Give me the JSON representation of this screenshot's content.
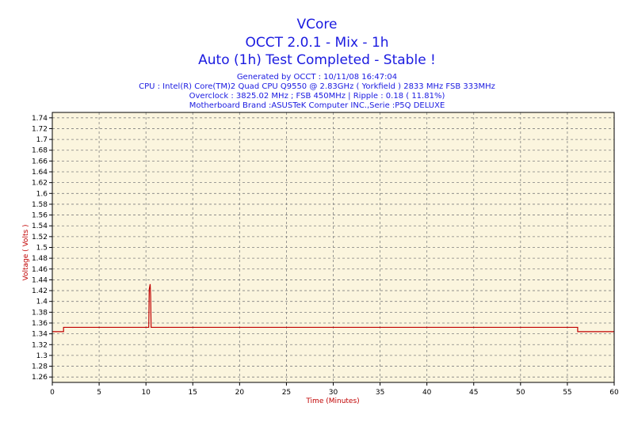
{
  "header": {
    "title": "VCore",
    "subtitle": "OCCT 2.0.1 - Mix - 1h",
    "status": "Auto (1h) Test Completed - Stable !",
    "info": [
      "Generated by OCCT : 10/11/08 16:47:04",
      "CPU : Intel(R) Core(TM)2 Quad CPU Q9550 @ 2.83GHz ( Yorkfield ) 2833 MHz FSB 333MHz",
      "Overclock : 3825.02 MHz ; FSB 450MHz | Ripple : 0.18 ( 11.81%)",
      "Motherboard Brand :ASUSTeK Computer INC.,Serie :P5Q DELUXE"
    ]
  },
  "colors": {
    "title": "#1a1ae0",
    "plot_background": "#fbf5de",
    "grid": "#808080",
    "series": "#c00000",
    "axis_label": "#c00000"
  },
  "chart_data": {
    "type": "line",
    "title": "VCore",
    "xlabel": "Time (Minutes)",
    "ylabel": "Voltage ( Volts )",
    "xlim": [
      0,
      60
    ],
    "ylim": [
      1.25,
      1.75
    ],
    "xticks": [
      0,
      5,
      10,
      15,
      20,
      25,
      30,
      35,
      40,
      45,
      50,
      55,
      60
    ],
    "yticks": [
      1.26,
      1.28,
      1.3,
      1.32,
      1.34,
      1.36,
      1.38,
      1.4,
      1.42,
      1.44,
      1.46,
      1.48,
      1.5,
      1.52,
      1.54,
      1.56,
      1.58,
      1.6,
      1.62,
      1.64,
      1.66,
      1.68,
      1.7,
      1.72,
      1.74
    ],
    "ytick_labels": [
      "1.26",
      "1.28",
      "1.3",
      "1.32",
      "1.34",
      "1.36",
      "1.38",
      "1.4",
      "1.42",
      "1.44",
      "1.46",
      "1.48",
      "1.5",
      "1.52",
      "1.54",
      "1.56",
      "1.58",
      "1.6",
      "1.62",
      "1.64",
      "1.66",
      "1.68",
      "1.7",
      "1.72",
      "1.74"
    ],
    "grid": true,
    "series": [
      {
        "x": [
          0,
          1.2,
          1.2,
          10.3,
          10.35,
          10.45,
          10.5,
          10.55,
          10.6,
          56.1,
          56.1,
          60
        ],
        "y": [
          1.344,
          1.344,
          1.352,
          1.352,
          1.422,
          1.432,
          1.41,
          1.352,
          1.352,
          1.352,
          1.344,
          1.344
        ]
      }
    ]
  }
}
